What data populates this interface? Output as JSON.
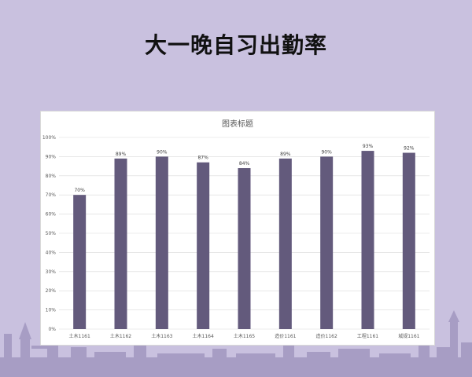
{
  "slide": {
    "title": "大一晚自习出勤率"
  },
  "colors": {
    "background": "#c9c1df",
    "bar": "#635a7c",
    "skyline": "#a79dc4"
  },
  "chart_data": {
    "type": "bar",
    "title": "图表标题",
    "categories": [
      "土木1161",
      "土木1162",
      "土木1163",
      "土木1164",
      "土木1165",
      "造价1161",
      "造价1162",
      "工程1161",
      "城规1161"
    ],
    "values": [
      70,
      89,
      90,
      87,
      84,
      89,
      90,
      93,
      92
    ],
    "data_labels": [
      "70%",
      "89%",
      "90%",
      "87%",
      "84%",
      "89%",
      "90%",
      "93%",
      "92%"
    ],
    "ylim": [
      0,
      100
    ],
    "yticks": [
      "0%",
      "10%",
      "20%",
      "30%",
      "40%",
      "50%",
      "60%",
      "70%",
      "80%",
      "90%",
      "100%"
    ],
    "grid": true,
    "legend": "none"
  }
}
